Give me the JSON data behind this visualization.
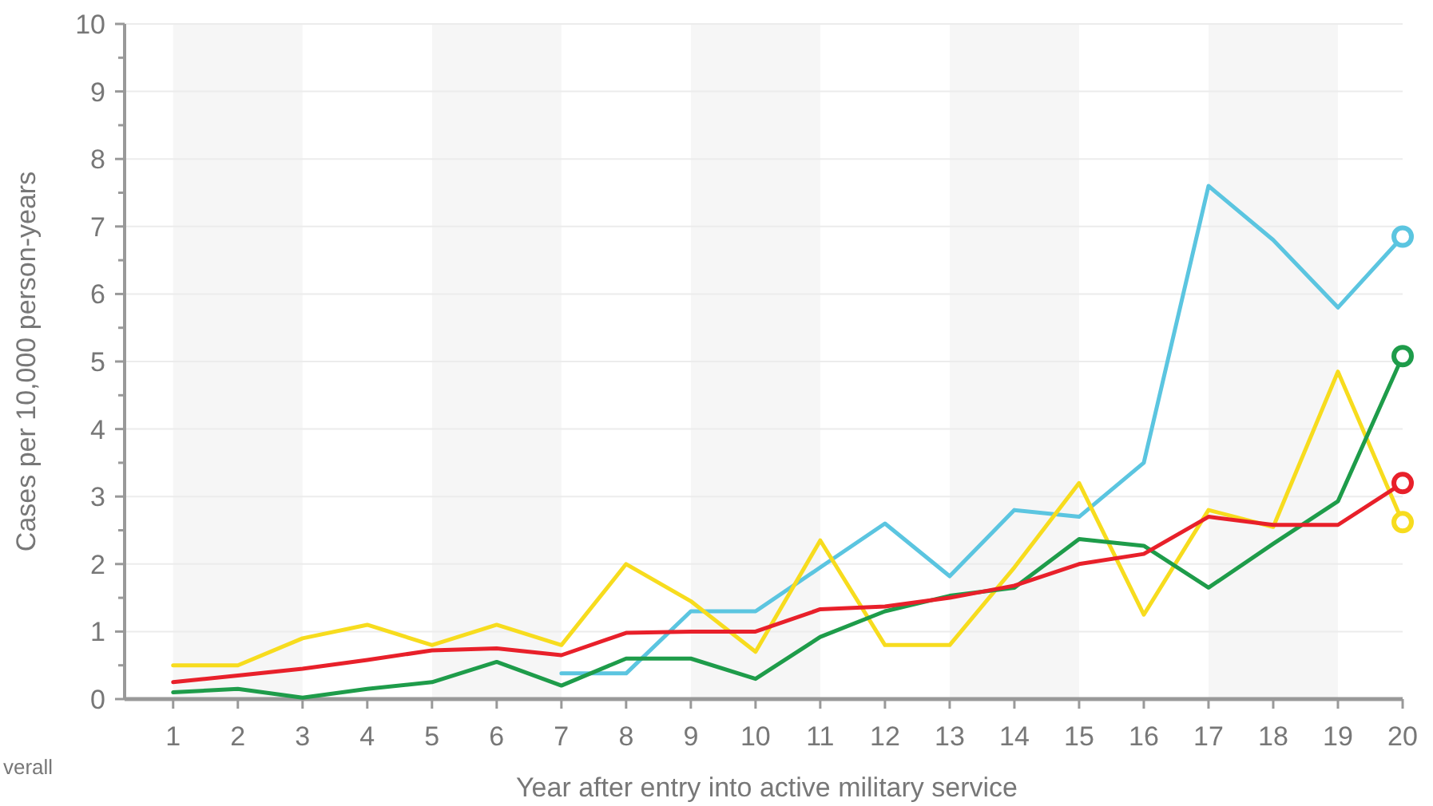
{
  "chart_data": {
    "type": "line",
    "xlabel": "Year after entry into active military service",
    "ylabel": "Cases per 10,000 person-years",
    "annotations": [
      "verall"
    ],
    "x": [
      1,
      2,
      3,
      4,
      5,
      6,
      7,
      8,
      9,
      10,
      11,
      12,
      13,
      14,
      15,
      16,
      17,
      18,
      19,
      20
    ],
    "xlim": [
      0.25,
      20
    ],
    "xticks": [
      1,
      2,
      3,
      4,
      5,
      6,
      7,
      8,
      9,
      10,
      11,
      12,
      13,
      14,
      15,
      16,
      17,
      18,
      19,
      20
    ],
    "ylim": [
      0,
      10
    ],
    "yticks": [
      0,
      {
        "value": 0.5,
        "label": null
      },
      1,
      {
        "value": 1.5,
        "label": null
      },
      2,
      {
        "value": 2.5,
        "label": null
      },
      3,
      {
        "value": 3.5,
        "label": null
      },
      4,
      {
        "value": 4.5,
        "label": null
      },
      5,
      {
        "value": 5.5,
        "label": null
      },
      6,
      {
        "value": 6.5,
        "label": null
      },
      7,
      {
        "value": 7.5,
        "label": null
      },
      8,
      {
        "value": 8.5,
        "label": null
      },
      9,
      {
        "value": 9.5,
        "label": null
      },
      10
    ],
    "grid": "y",
    "line_style": "solid",
    "bands": [
      {
        "axis": "x",
        "from": 1,
        "to": 3,
        "color": "#f6f6f6"
      },
      {
        "axis": "x",
        "from": 5,
        "to": 7,
        "color": "#f6f6f6"
      },
      {
        "axis": "x",
        "from": 9,
        "to": 11,
        "color": "#f6f6f6"
      },
      {
        "axis": "x",
        "from": 13,
        "to": 15,
        "color": "#f6f6f6"
      },
      {
        "axis": "x",
        "from": 17,
        "to": 19,
        "color": "#f6f6f6"
      }
    ],
    "series": [
      {
        "color": "#5bc5e0",
        "values": [
          null,
          null,
          null,
          null,
          null,
          null,
          0.38,
          0.38,
          1.3,
          1.3,
          1.95,
          2.6,
          1.82,
          2.8,
          2.7,
          3.5,
          7.6,
          6.8,
          5.8,
          6.85
        ]
      },
      {
        "color": "#f7dc1e",
        "values": [
          0.5,
          0.5,
          0.9,
          1.1,
          0.8,
          1.1,
          0.8,
          2.0,
          1.45,
          0.7,
          2.35,
          0.8,
          0.8,
          1.95,
          3.2,
          1.25,
          2.8,
          2.55,
          4.85,
          2.62
        ]
      },
      {
        "color": "#1e9c4a",
        "values": [
          0.1,
          0.15,
          0.02,
          0.15,
          0.25,
          0.55,
          0.2,
          0.6,
          0.6,
          0.3,
          0.92,
          1.3,
          1.53,
          1.65,
          2.37,
          2.27,
          1.65,
          2.3,
          2.93,
          5.08
        ]
      },
      {
        "color": "#e8202a",
        "values": [
          0.25,
          0.35,
          0.45,
          0.58,
          0.72,
          0.75,
          0.65,
          0.98,
          1.0,
          1.0,
          1.33,
          1.37,
          1.5,
          1.68,
          2.0,
          2.15,
          2.7,
          2.58,
          2.58,
          3.2
        ]
      },
      {
        "type": "scatter",
        "marker": "circle",
        "color": "#5bc5e0",
        "values": [
          null,
          null,
          null,
          null,
          null,
          null,
          null,
          null,
          null,
          null,
          null,
          null,
          null,
          null,
          null,
          null,
          null,
          null,
          null,
          6.85
        ]
      },
      {
        "type": "scatter",
        "marker": "circle",
        "color": "#f7dc1e",
        "values": [
          null,
          null,
          null,
          null,
          null,
          null,
          null,
          null,
          null,
          null,
          null,
          null,
          null,
          null,
          null,
          null,
          null,
          null,
          null,
          2.62
        ]
      },
      {
        "type": "scatter",
        "marker": "circle",
        "color": "#1e9c4a",
        "values": [
          null,
          null,
          null,
          null,
          null,
          null,
          null,
          null,
          null,
          null,
          null,
          null,
          null,
          null,
          null,
          null,
          null,
          null,
          null,
          5.08
        ]
      },
      {
        "type": "scatter",
        "marker": "circle",
        "color": "#e8202a",
        "values": [
          null,
          null,
          null,
          null,
          null,
          null,
          null,
          null,
          null,
          null,
          null,
          null,
          null,
          null,
          null,
          null,
          null,
          null,
          null,
          3.2
        ]
      }
    ]
  }
}
